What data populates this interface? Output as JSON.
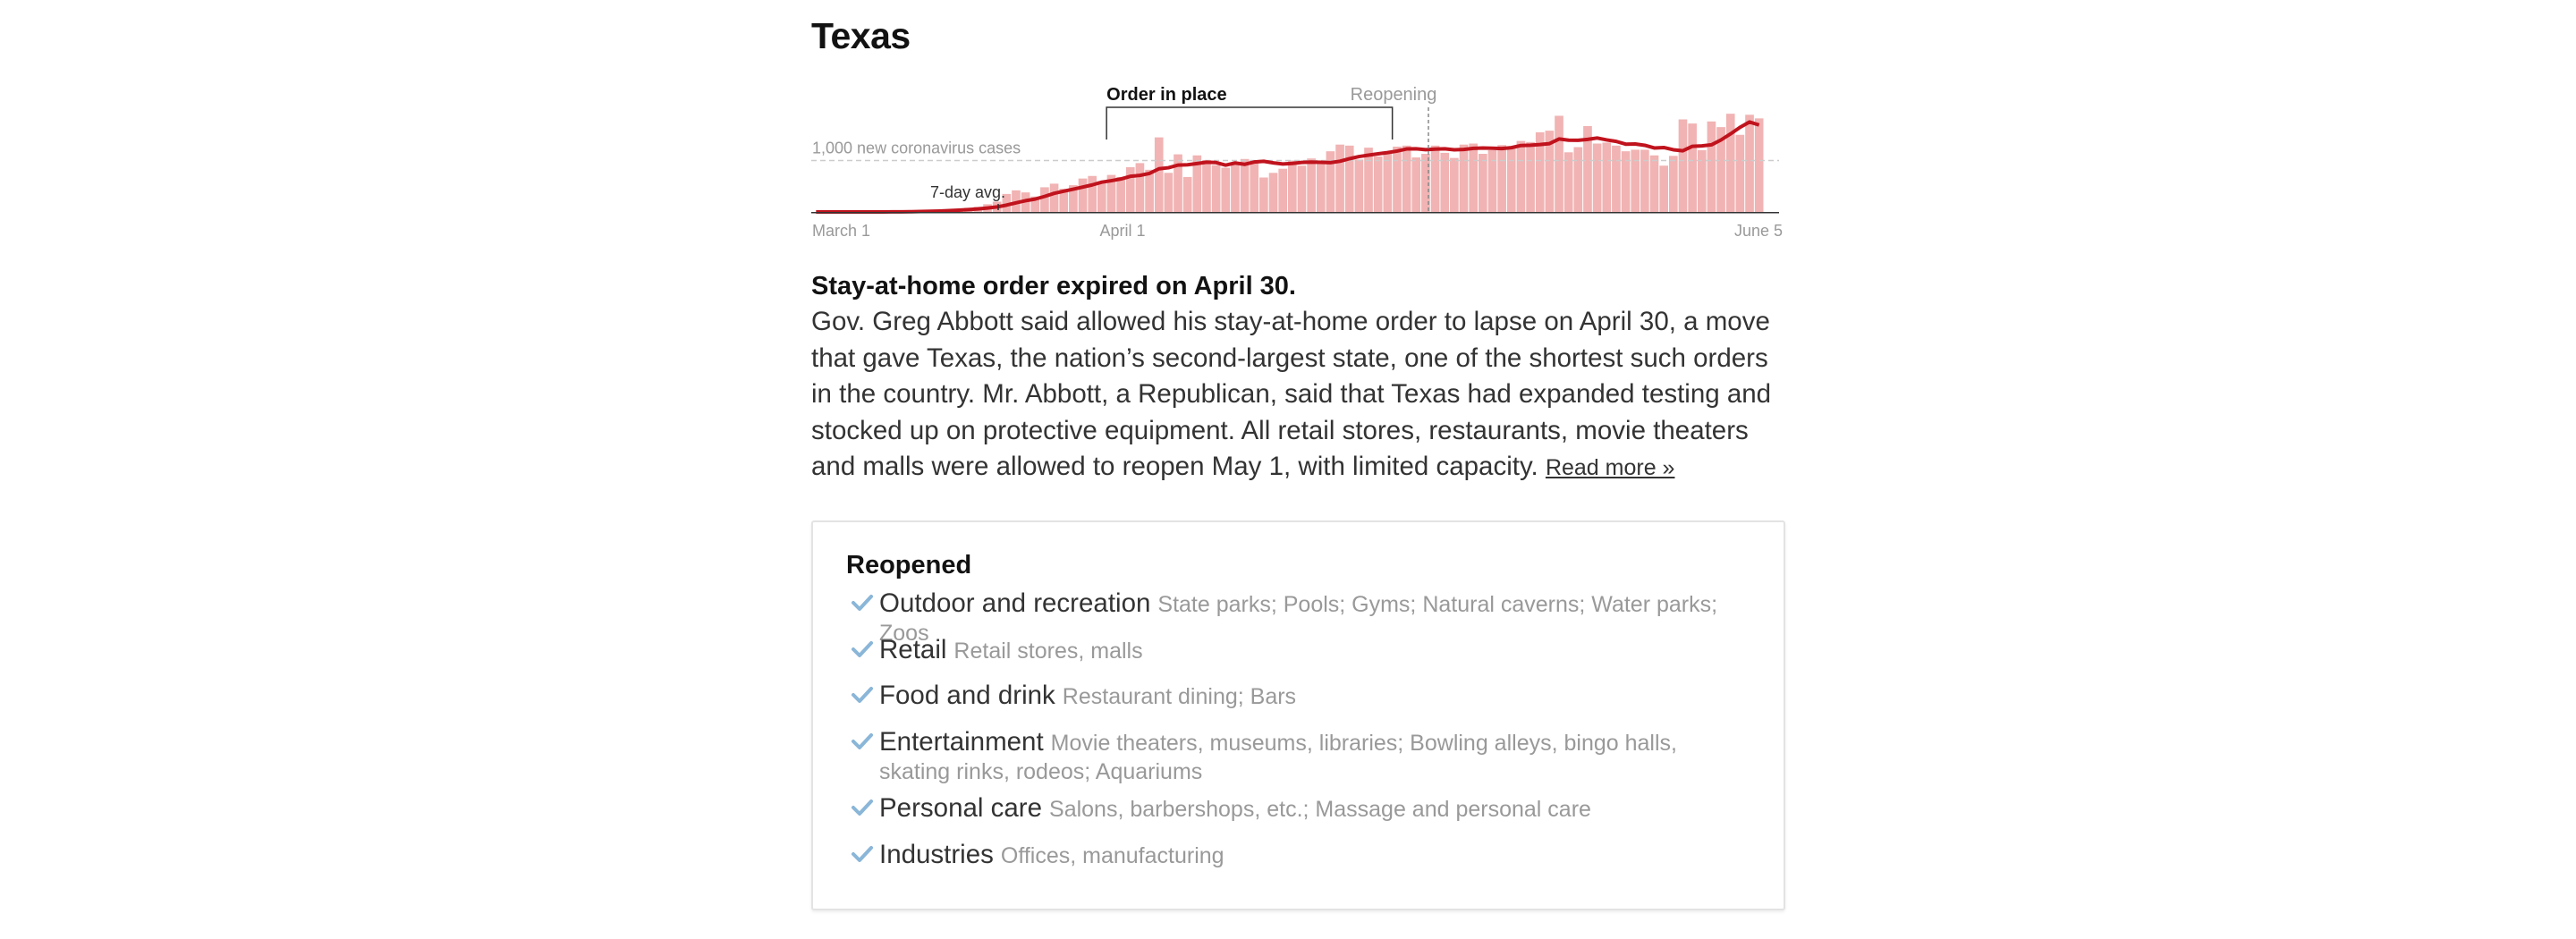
{
  "state": "Texas",
  "chart_data": {
    "type": "bar",
    "title": "",
    "x_start_label": "March 1",
    "x_mid_label": "April 1",
    "x_end_label": "June 5",
    "ylim": [
      0,
      2000
    ],
    "reference_line": {
      "value": 1000,
      "label": "1,000 new coronavirus cases"
    },
    "avg_label": "7-day avg.",
    "series": [
      {
        "name": "new cases",
        "values": [
          0,
          0,
          0,
          0,
          0,
          0,
          0,
          1,
          2,
          3,
          8,
          12,
          20,
          30,
          50,
          55,
          80,
          100,
          150,
          200,
          350,
          420,
          380,
          300,
          480,
          550,
          450,
          520,
          650,
          700,
          600,
          720,
          680,
          870,
          950,
          820,
          1450,
          760,
          1120,
          680,
          1100,
          1010,
          910,
          860,
          950,
          1030,
          1000,
          670,
          760,
          840,
          1000,
          900,
          1040,
          960,
          1180,
          1310,
          1290,
          1020,
          1250,
          1080,
          1130,
          1270,
          1290,
          1060,
          1130,
          1290,
          1150,
          1050,
          1310,
          1330,
          1130,
          1200,
          1300,
          1250,
          1380,
          1360,
          1550,
          1580,
          1870,
          1160,
          1260,
          1670,
          1330,
          1350,
          1290,
          1180,
          1210,
          1210,
          1100,
          900,
          1090,
          1800,
          1720,
          1200,
          1760,
          1650,
          1910,
          1500,
          1890,
          1820
        ]
      },
      {
        "name": "7-day avg.",
        "values": [
          0,
          0,
          0,
          0,
          0,
          0,
          0,
          1,
          2,
          3,
          5,
          8,
          12,
          18,
          26,
          34,
          45,
          58,
          76,
          97,
          133,
          178,
          219,
          250,
          302,
          362,
          404,
          443,
          484,
          526,
          579,
          608,
          641,
          693,
          711,
          749,
          839,
          860,
          911,
          918,
          941,
          967,
          960,
          910,
          952,
          926,
          971,
          985,
          955,
          933,
          944,
          963,
          969,
          965,
          959,
          986,
          1035,
          1077,
          1104,
          1131,
          1155,
          1184,
          1225,
          1229,
          1210,
          1222,
          1228,
          1209,
          1215,
          1237,
          1244,
          1239,
          1232,
          1250,
          1292,
          1298,
          1311,
          1329,
          1419,
          1396,
          1393,
          1411,
          1438,
          1401,
          1372,
          1318,
          1321,
          1296,
          1244,
          1253,
          1209,
          1190,
          1277,
          1284,
          1306,
          1400,
          1518,
          1645,
          1749,
          1691
        ]
      }
    ],
    "annotations": [
      {
        "label": "Order in place",
        "start_index": 31,
        "end_index": 60
      },
      {
        "label": "Reopening",
        "index": 61
      }
    ]
  },
  "order": {
    "headline": "Stay-at-home order expired on April 30.",
    "body": "Gov. Greg Abbott said allowed his stay-at-home order to lapse on April 30, a move that gave Texas, the nation’s second-largest state, one of the shortest such orders in the country. Mr. Abbott, a Republican, said that Texas had expanded testing and stocked up on protective equipment. All retail stores, restaurants, movie theaters and malls were allowed to reopen May 1, with limited capacity.",
    "read_more": "Read more »"
  },
  "reopened": {
    "heading": "Reopened",
    "check_color": "#8ab6d8",
    "items": [
      {
        "name": "Outdoor and recreation",
        "detail": "State parks; Pools; Gyms; Natural caverns; Water parks; Zoos"
      },
      {
        "name": "Retail",
        "detail": "Retail stores, malls"
      },
      {
        "name": "Food and drink",
        "detail": "Restaurant dining; Bars"
      },
      {
        "name": "Entertainment",
        "detail": "Movie theaters, museums, libraries; Bowling alleys, bingo halls, skating rinks, rodeos; Aquariums"
      },
      {
        "name": "Personal care",
        "detail": "Salons, barbershops, etc.; Massage and personal care"
      },
      {
        "name": "Industries",
        "detail": "Offices, manufacturing"
      }
    ]
  },
  "colors": {
    "bars": "#f1b3b3",
    "avg_line": "#c0131d",
    "reference_line": "#cccccc",
    "axis": "#333333",
    "muted_text": "#999999"
  }
}
